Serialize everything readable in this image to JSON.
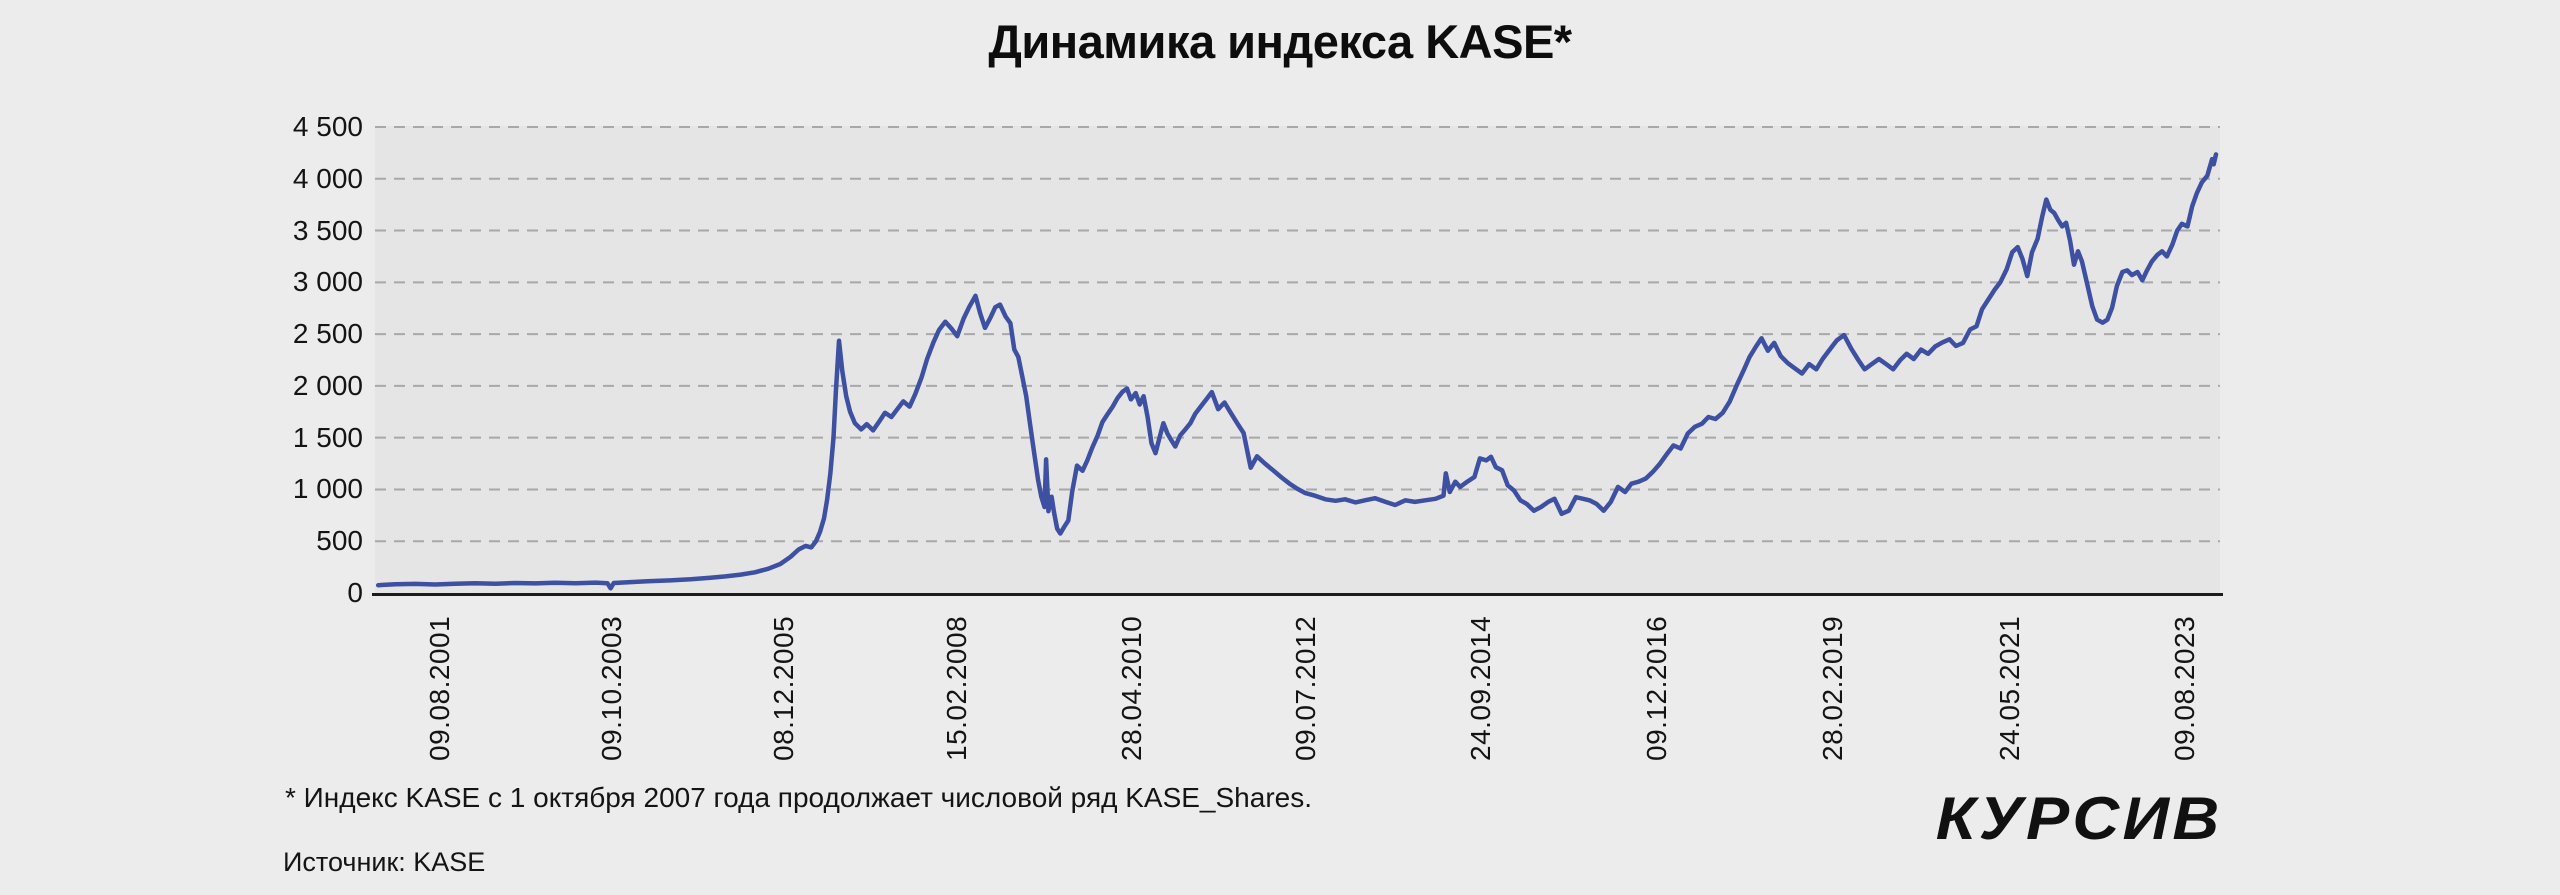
{
  "title": "Динамика индекса KASE*",
  "footnote": "* Индекс KASE с 1 октября 2007 года продолжает числовой ряд KASE_Shares.",
  "source": "Источник: KASE",
  "brand": "КУРСИВ",
  "colors": {
    "page_bg": "#ececec",
    "plot_bg": "#e5e5e6",
    "grid": "#a8a8a8",
    "axis": "#1c1c1c",
    "line": "#3d50a1",
    "text": "#141414"
  },
  "chart_data": {
    "type": "line",
    "title": "Динамика индекса KASE*",
    "xlabel": "",
    "ylabel": "",
    "ylim": [
      0,
      4500
    ],
    "grid": "dashed-horizontal",
    "legend": "none",
    "x_domain_years": [
      2000.77,
      2024.03
    ],
    "y_ticks": [
      {
        "label": "4 500",
        "value": 4500
      },
      {
        "label": "4 000",
        "value": 4000
      },
      {
        "label": "3 500",
        "value": 3500
      },
      {
        "label": "3 000",
        "value": 3000
      },
      {
        "label": "2 500",
        "value": 2500
      },
      {
        "label": "2 000",
        "value": 2000
      },
      {
        "label": "1 500",
        "value": 1500
      },
      {
        "label": "1 000",
        "value": 1000
      },
      {
        "label": "500",
        "value": 500
      },
      {
        "label": "0",
        "value": 0
      }
    ],
    "x_ticks": [
      {
        "label": "09.08.2001",
        "year": 2001.6
      },
      {
        "label": "09.10.2003",
        "year": 2003.77
      },
      {
        "label": "08.12.2005",
        "year": 2005.94
      },
      {
        "label": "15.02.2008",
        "year": 2008.12
      },
      {
        "label": "28.04.2010",
        "year": 2010.32
      },
      {
        "label": "09.07.2012",
        "year": 2012.52
      },
      {
        "label": "24.09.2014",
        "year": 2014.73
      },
      {
        "label": "09.12.2016",
        "year": 2016.94
      },
      {
        "label": "28.02.2019",
        "year": 2019.16
      },
      {
        "label": "24.05.2021",
        "year": 2021.39
      },
      {
        "label": "09.08.2023",
        "year": 2023.6
      }
    ],
    "series": [
      {
        "name": "Индекс KASE / KASE_Shares",
        "points": [
          [
            2000.81,
            75
          ],
          [
            2001.03,
            85
          ],
          [
            2001.28,
            88
          ],
          [
            2001.53,
            82
          ],
          [
            2001.78,
            90
          ],
          [
            2002.03,
            95
          ],
          [
            2002.29,
            90
          ],
          [
            2002.54,
            97
          ],
          [
            2002.79,
            93
          ],
          [
            2003.04,
            99
          ],
          [
            2003.3,
            95
          ],
          [
            2003.55,
            100
          ],
          [
            2003.7,
            95
          ],
          [
            2003.74,
            45
          ],
          [
            2003.78,
            97
          ],
          [
            2003.99,
            105
          ],
          [
            2004.24,
            115
          ],
          [
            2004.49,
            122
          ],
          [
            2004.75,
            132
          ],
          [
            2005.0,
            148
          ],
          [
            2005.19,
            160
          ],
          [
            2005.38,
            178
          ],
          [
            2005.56,
            200
          ],
          [
            2005.73,
            235
          ],
          [
            2005.88,
            280
          ],
          [
            2006.01,
            350
          ],
          [
            2006.11,
            420
          ],
          [
            2006.2,
            455
          ],
          [
            2006.27,
            440
          ],
          [
            2006.33,
            500
          ],
          [
            2006.38,
            590
          ],
          [
            2006.43,
            720
          ],
          [
            2006.47,
            900
          ],
          [
            2006.51,
            1150
          ],
          [
            2006.55,
            1500
          ],
          [
            2006.58,
            1950
          ],
          [
            2006.62,
            2435
          ],
          [
            2006.66,
            2150
          ],
          [
            2006.71,
            1900
          ],
          [
            2006.76,
            1750
          ],
          [
            2006.82,
            1640
          ],
          [
            2006.9,
            1580
          ],
          [
            2006.97,
            1630
          ],
          [
            2007.05,
            1570
          ],
          [
            2007.13,
            1660
          ],
          [
            2007.2,
            1740
          ],
          [
            2007.28,
            1700
          ],
          [
            2007.35,
            1770
          ],
          [
            2007.43,
            1850
          ],
          [
            2007.51,
            1800
          ],
          [
            2007.58,
            1920
          ],
          [
            2007.66,
            2080
          ],
          [
            2007.73,
            2260
          ],
          [
            2007.81,
            2420
          ],
          [
            2007.88,
            2540
          ],
          [
            2007.96,
            2620
          ],
          [
            2008.04,
            2550
          ],
          [
            2008.11,
            2480
          ],
          [
            2008.19,
            2650
          ],
          [
            2008.26,
            2760
          ],
          [
            2008.34,
            2870
          ],
          [
            2008.4,
            2700
          ],
          [
            2008.46,
            2560
          ],
          [
            2008.53,
            2660
          ],
          [
            2008.59,
            2760
          ],
          [
            2008.65,
            2785
          ],
          [
            2008.72,
            2670
          ],
          [
            2008.78,
            2605
          ],
          [
            2008.83,
            2350
          ],
          [
            2008.88,
            2280
          ],
          [
            2008.93,
            2090
          ],
          [
            2008.98,
            1900
          ],
          [
            2009.03,
            1620
          ],
          [
            2009.08,
            1350
          ],
          [
            2009.13,
            1090
          ],
          [
            2009.17,
            930
          ],
          [
            2009.21,
            830
          ],
          [
            2009.23,
            1290
          ],
          [
            2009.26,
            790
          ],
          [
            2009.3,
            930
          ],
          [
            2009.33,
            780
          ],
          [
            2009.37,
            620
          ],
          [
            2009.41,
            575
          ],
          [
            2009.46,
            640
          ],
          [
            2009.51,
            700
          ],
          [
            2009.56,
            980
          ],
          [
            2009.62,
            1230
          ],
          [
            2009.69,
            1180
          ],
          [
            2009.75,
            1280
          ],
          [
            2009.81,
            1400
          ],
          [
            2009.88,
            1520
          ],
          [
            2009.94,
            1650
          ],
          [
            2010.0,
            1720
          ],
          [
            2010.07,
            1800
          ],
          [
            2010.13,
            1880
          ],
          [
            2010.19,
            1940
          ],
          [
            2010.25,
            1975
          ],
          [
            2010.3,
            1870
          ],
          [
            2010.36,
            1930
          ],
          [
            2010.41,
            1820
          ],
          [
            2010.46,
            1900
          ],
          [
            2010.51,
            1700
          ],
          [
            2010.56,
            1445
          ],
          [
            2010.61,
            1350
          ],
          [
            2010.66,
            1500
          ],
          [
            2010.71,
            1640
          ],
          [
            2010.76,
            1540
          ],
          [
            2010.81,
            1475
          ],
          [
            2010.86,
            1415
          ],
          [
            2010.92,
            1520
          ],
          [
            2010.98,
            1575
          ],
          [
            2011.05,
            1640
          ],
          [
            2011.11,
            1730
          ],
          [
            2011.17,
            1790
          ],
          [
            2011.25,
            1870
          ],
          [
            2011.32,
            1940
          ],
          [
            2011.4,
            1775
          ],
          [
            2011.48,
            1840
          ],
          [
            2011.55,
            1750
          ],
          [
            2011.64,
            1640
          ],
          [
            2011.72,
            1545
          ],
          [
            2011.81,
            1210
          ],
          [
            2011.89,
            1320
          ],
          [
            2011.99,
            1250
          ],
          [
            2012.1,
            1180
          ],
          [
            2012.2,
            1115
          ],
          [
            2012.3,
            1055
          ],
          [
            2012.4,
            1005
          ],
          [
            2012.5,
            965
          ],
          [
            2012.62,
            940
          ],
          [
            2012.75,
            905
          ],
          [
            2012.88,
            890
          ],
          [
            2013.0,
            905
          ],
          [
            2013.13,
            875
          ],
          [
            2013.25,
            895
          ],
          [
            2013.38,
            915
          ],
          [
            2013.51,
            880
          ],
          [
            2013.63,
            850
          ],
          [
            2013.76,
            895
          ],
          [
            2013.88,
            880
          ],
          [
            2014.01,
            895
          ],
          [
            2014.14,
            910
          ],
          [
            2014.24,
            940
          ],
          [
            2014.27,
            1155
          ],
          [
            2014.32,
            975
          ],
          [
            2014.39,
            1075
          ],
          [
            2014.45,
            1025
          ],
          [
            2014.54,
            1075
          ],
          [
            2014.63,
            1120
          ],
          [
            2014.7,
            1300
          ],
          [
            2014.78,
            1280
          ],
          [
            2014.84,
            1315
          ],
          [
            2014.9,
            1215
          ],
          [
            2014.98,
            1185
          ],
          [
            2015.05,
            1040
          ],
          [
            2015.13,
            990
          ],
          [
            2015.21,
            895
          ],
          [
            2015.29,
            860
          ],
          [
            2015.38,
            795
          ],
          [
            2015.47,
            830
          ],
          [
            2015.56,
            880
          ],
          [
            2015.64,
            910
          ],
          [
            2015.73,
            765
          ],
          [
            2015.82,
            795
          ],
          [
            2015.91,
            925
          ],
          [
            2016.0,
            910
          ],
          [
            2016.08,
            895
          ],
          [
            2016.17,
            860
          ],
          [
            2016.26,
            795
          ],
          [
            2016.35,
            880
          ],
          [
            2016.44,
            1025
          ],
          [
            2016.53,
            975
          ],
          [
            2016.61,
            1055
          ],
          [
            2016.7,
            1075
          ],
          [
            2016.79,
            1105
          ],
          [
            2016.88,
            1170
          ],
          [
            2016.97,
            1250
          ],
          [
            2017.06,
            1345
          ],
          [
            2017.14,
            1425
          ],
          [
            2017.23,
            1395
          ],
          [
            2017.32,
            1540
          ],
          [
            2017.41,
            1605
          ],
          [
            2017.5,
            1635
          ],
          [
            2017.58,
            1700
          ],
          [
            2017.67,
            1680
          ],
          [
            2017.76,
            1740
          ],
          [
            2017.85,
            1850
          ],
          [
            2017.94,
            2010
          ],
          [
            2018.03,
            2160
          ],
          [
            2018.1,
            2280
          ],
          [
            2018.18,
            2380
          ],
          [
            2018.25,
            2460
          ],
          [
            2018.33,
            2340
          ],
          [
            2018.41,
            2415
          ],
          [
            2018.49,
            2290
          ],
          [
            2018.58,
            2220
          ],
          [
            2018.67,
            2170
          ],
          [
            2018.76,
            2120
          ],
          [
            2018.85,
            2210
          ],
          [
            2018.94,
            2160
          ],
          [
            2019.02,
            2260
          ],
          [
            2019.11,
            2350
          ],
          [
            2019.2,
            2440
          ],
          [
            2019.29,
            2490
          ],
          [
            2019.38,
            2360
          ],
          [
            2019.47,
            2250
          ],
          [
            2019.55,
            2160
          ],
          [
            2019.64,
            2210
          ],
          [
            2019.73,
            2260
          ],
          [
            2019.82,
            2210
          ],
          [
            2019.91,
            2160
          ],
          [
            2020.0,
            2250
          ],
          [
            2020.08,
            2310
          ],
          [
            2020.17,
            2260
          ],
          [
            2020.26,
            2350
          ],
          [
            2020.35,
            2310
          ],
          [
            2020.44,
            2380
          ],
          [
            2020.53,
            2420
          ],
          [
            2020.62,
            2450
          ],
          [
            2020.7,
            2385
          ],
          [
            2020.79,
            2415
          ],
          [
            2020.88,
            2545
          ],
          [
            2020.96,
            2575
          ],
          [
            2021.03,
            2740
          ],
          [
            2021.11,
            2835
          ],
          [
            2021.19,
            2930
          ],
          [
            2021.26,
            3000
          ],
          [
            2021.34,
            3125
          ],
          [
            2021.41,
            3290
          ],
          [
            2021.48,
            3340
          ],
          [
            2021.54,
            3225
          ],
          [
            2021.6,
            3060
          ],
          [
            2021.66,
            3290
          ],
          [
            2021.73,
            3420
          ],
          [
            2021.79,
            3640
          ],
          [
            2021.84,
            3800
          ],
          [
            2021.89,
            3700
          ],
          [
            2021.94,
            3670
          ],
          [
            2021.99,
            3600
          ],
          [
            2022.04,
            3540
          ],
          [
            2022.09,
            3575
          ],
          [
            2022.14,
            3400
          ],
          [
            2022.19,
            3170
          ],
          [
            2022.24,
            3300
          ],
          [
            2022.29,
            3200
          ],
          [
            2022.36,
            2970
          ],
          [
            2022.42,
            2770
          ],
          [
            2022.48,
            2640
          ],
          [
            2022.55,
            2610
          ],
          [
            2022.61,
            2640
          ],
          [
            2022.67,
            2755
          ],
          [
            2022.73,
            2965
          ],
          [
            2022.8,
            3100
          ],
          [
            2022.86,
            3115
          ],
          [
            2022.92,
            3070
          ],
          [
            2022.99,
            3100
          ],
          [
            2023.05,
            3020
          ],
          [
            2023.11,
            3115
          ],
          [
            2023.17,
            3200
          ],
          [
            2023.24,
            3265
          ],
          [
            2023.3,
            3300
          ],
          [
            2023.36,
            3250
          ],
          [
            2023.43,
            3365
          ],
          [
            2023.49,
            3500
          ],
          [
            2023.55,
            3565
          ],
          [
            2023.62,
            3540
          ],
          [
            2023.68,
            3735
          ],
          [
            2023.74,
            3865
          ],
          [
            2023.8,
            3965
          ],
          [
            2023.87,
            4030
          ],
          [
            2023.9,
            4110
          ],
          [
            2023.93,
            4190
          ],
          [
            2023.95,
            4140
          ],
          [
            2023.98,
            4235
          ]
        ]
      }
    ]
  }
}
